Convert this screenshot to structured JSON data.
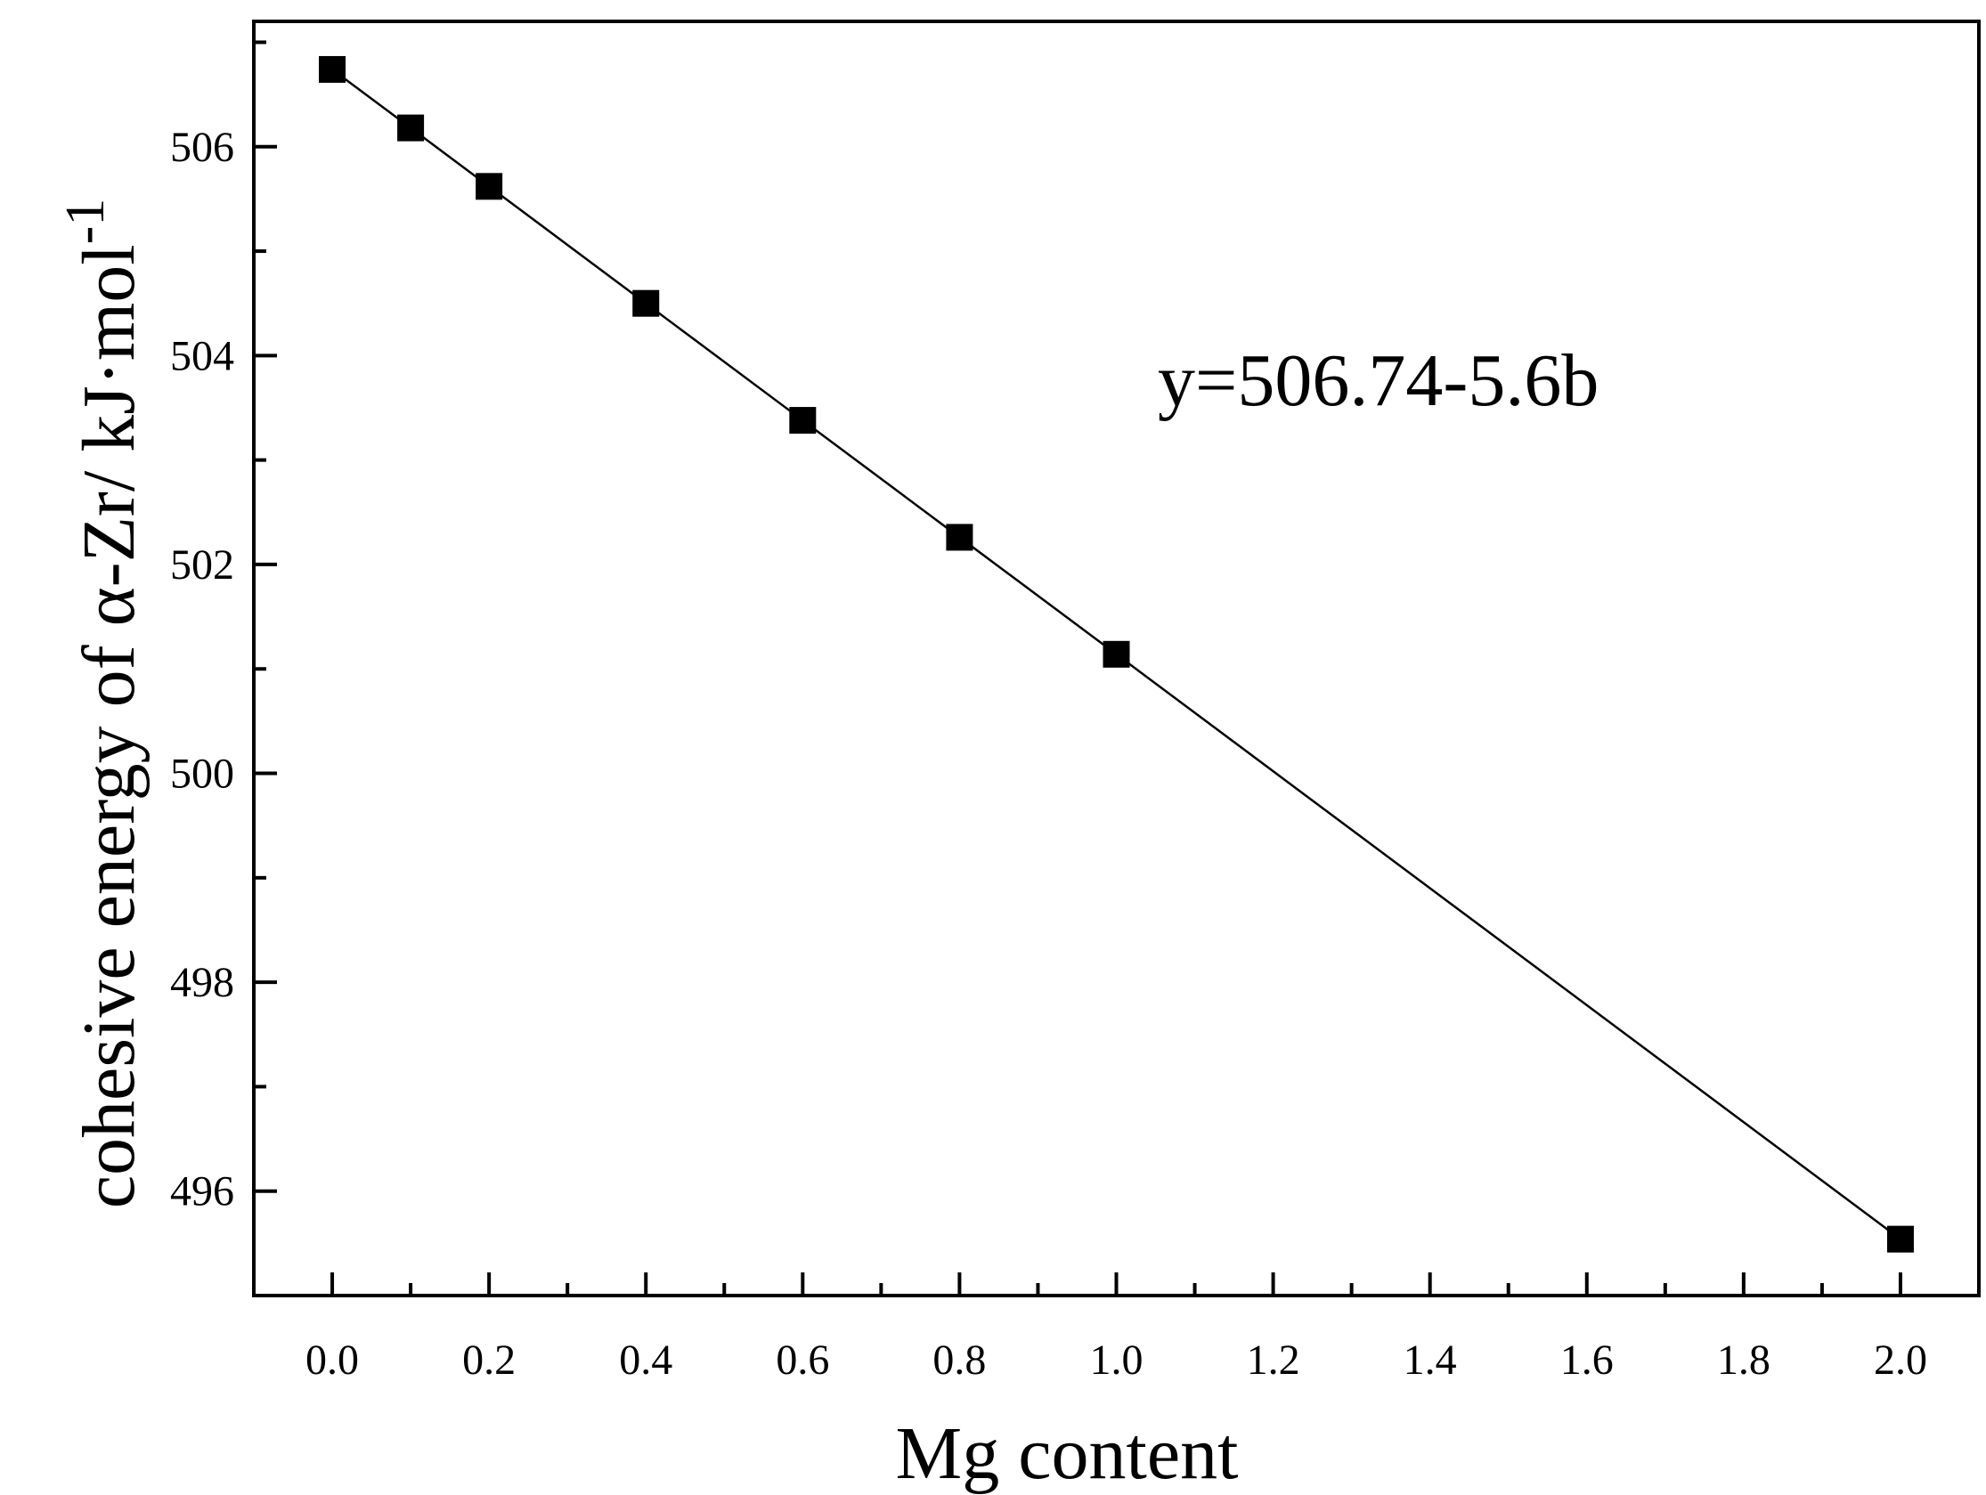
{
  "chart_data": {
    "type": "line",
    "xlabel": "Mg content",
    "ylabel_main": "cohesive energy of α-Zr/ kJ·mol",
    "ylabel_sup": "-1",
    "annotation": "y=506.74-5.6b",
    "xlim": [
      -0.1,
      2.1
    ],
    "ylim": [
      495.0,
      507.2
    ],
    "x_ticks": [
      0.0,
      0.2,
      0.4,
      0.6,
      0.8,
      1.0,
      1.2,
      1.4,
      1.6,
      1.8,
      2.0
    ],
    "x_tick_labels": [
      "0.0",
      "0.2",
      "0.4",
      "0.6",
      "0.8",
      "1.0",
      "1.2",
      "1.4",
      "1.6",
      "1.8",
      "2.0"
    ],
    "x_minor_ticks": [
      -0.1,
      0.1,
      0.3,
      0.5,
      0.7,
      0.9,
      1.1,
      1.3,
      1.5,
      1.7,
      1.9,
      2.1
    ],
    "y_ticks": [
      496,
      498,
      500,
      502,
      504,
      506
    ],
    "y_tick_labels": [
      "496",
      "498",
      "500",
      "502",
      "504",
      "506"
    ],
    "y_minor_ticks": [
      495,
      497,
      499,
      501,
      503,
      505,
      507
    ],
    "grid": false,
    "legend": "none",
    "series": [
      {
        "marker": "square",
        "color": "#000000",
        "x": [
          0.0,
          0.1,
          0.2,
          0.4,
          0.6,
          0.8,
          1.0,
          2.0
        ],
        "y": [
          506.74,
          506.18,
          505.62,
          504.5,
          503.38,
          502.26,
          501.14,
          495.54
        ]
      }
    ]
  }
}
